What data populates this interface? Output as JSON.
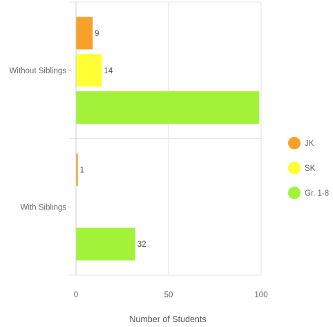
{
  "chart_data": {
    "type": "bar",
    "orientation": "horizontal",
    "categories": [
      "Without Siblings",
      "With Siblings"
    ],
    "series": [
      {
        "name": "JK",
        "color": "#f7a12b",
        "values": [
          9,
          1
        ]
      },
      {
        "name": "SK",
        "color": "#ffff33",
        "values": [
          14,
          0
        ]
      },
      {
        "name": "Gr. 1-8",
        "color": "#a3f23a",
        "values": [
          99,
          32
        ]
      }
    ],
    "data_labels": [
      [
        "9",
        "1"
      ],
      [
        "14",
        ""
      ],
      [
        "",
        "32"
      ]
    ],
    "xlabel": "Number of Students",
    "ylabel": "",
    "xlim": [
      0,
      100
    ],
    "xticks": [
      "0",
      "50",
      "100"
    ],
    "grid": true,
    "legend_position": "right"
  }
}
